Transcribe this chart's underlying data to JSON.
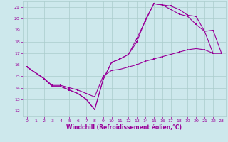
{
  "xlabel": "Windchill (Refroidissement éolien,°C)",
  "bg_color": "#cde8ec",
  "grid_color": "#aacccc",
  "line_color": "#990099",
  "xlim": [
    -0.5,
    23.5
  ],
  "ylim": [
    11.5,
    21.5
  ],
  "yticks": [
    12,
    13,
    14,
    15,
    16,
    17,
    18,
    19,
    20,
    21
  ],
  "xticks": [
    0,
    1,
    2,
    3,
    4,
    5,
    6,
    7,
    8,
    9,
    10,
    11,
    12,
    13,
    14,
    15,
    16,
    17,
    18,
    19,
    20,
    21,
    22,
    23
  ],
  "line1_x": [
    0,
    1,
    2,
    3,
    4,
    5,
    6,
    7,
    8,
    9,
    10,
    11,
    12,
    13,
    14,
    15,
    16,
    17,
    18,
    19,
    20,
    21,
    22,
    23
  ],
  "line1_y": [
    15.8,
    15.3,
    14.8,
    14.1,
    14.1,
    13.8,
    13.5,
    13.0,
    12.1,
    14.7,
    16.2,
    16.5,
    16.9,
    18.3,
    19.8,
    21.3,
    21.2,
    21.1,
    20.8,
    20.3,
    20.2,
    18.9,
    17.0,
    17.0
  ],
  "line2_x": [
    0,
    1,
    2,
    3,
    4,
    5,
    6,
    7,
    8,
    9,
    10,
    11,
    12,
    13,
    14,
    15,
    16,
    17,
    18,
    19,
    20,
    21,
    22,
    23
  ],
  "line2_y": [
    15.8,
    15.3,
    14.8,
    14.1,
    14.1,
    13.8,
    13.5,
    13.0,
    12.1,
    14.7,
    16.2,
    16.5,
    16.9,
    18.0,
    19.9,
    21.3,
    21.2,
    20.8,
    20.4,
    20.2,
    19.5,
    18.9,
    19.0,
    17.0
  ],
  "line3_x": [
    0,
    1,
    2,
    3,
    4,
    5,
    6,
    7,
    8,
    9,
    10,
    11,
    12,
    13,
    14,
    15,
    16,
    17,
    18,
    19,
    20,
    21,
    22,
    23
  ],
  "line3_y": [
    15.8,
    15.3,
    14.8,
    14.2,
    14.2,
    14.0,
    13.8,
    13.5,
    13.2,
    15.0,
    15.5,
    15.6,
    15.8,
    16.0,
    16.3,
    16.5,
    16.7,
    16.9,
    17.1,
    17.3,
    17.4,
    17.3,
    17.0,
    17.0
  ]
}
